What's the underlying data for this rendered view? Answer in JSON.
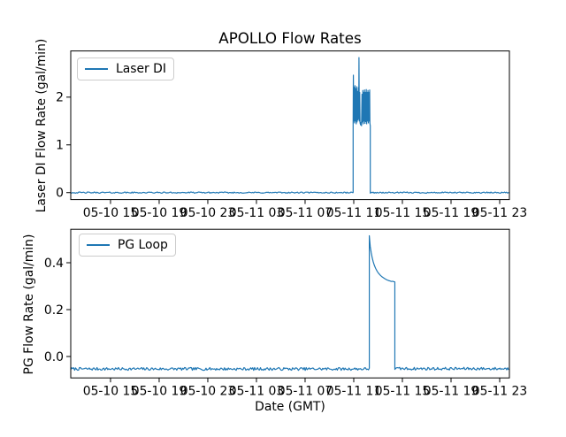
{
  "figure": {
    "background_color": "#ffffff",
    "spine_color": "#000000",
    "legend_border_color": "#cccccc",
    "accent_color": "#1f77b4"
  },
  "chart_data": [
    {
      "type": "line",
      "title": "APOLLO Flow Rates",
      "xlabel": "",
      "ylabel": "Laser DI Flow Rate (gal/min)",
      "legend": {
        "label": "Laser DI",
        "position": "upper left"
      },
      "grid": false,
      "x_unit": "hours since 05-10 00:00 GMT",
      "xlim": [
        11.73,
        47.8
      ],
      "ylim": [
        -0.146,
        2.968
      ],
      "xticks": [
        15,
        19,
        23,
        27,
        31,
        35,
        39,
        43,
        47
      ],
      "xtick_labels": [
        "05-10 15",
        "05-10 19",
        "05-10 23",
        "05-11 03",
        "05-11 07",
        "05-11 11",
        "05-11 15",
        "05-11 19",
        "05-11 23"
      ],
      "yticks": [
        0,
        1,
        2
      ],
      "ytick_labels": [
        "0",
        "1",
        "2"
      ],
      "series": [
        {
          "name": "Laser DI",
          "color": "#1f77b4",
          "segments": [
            {
              "type": "noisy-flat",
              "t0": 11.73,
              "t1": 34.95,
              "v": 0.0,
              "noise": 0.013
            },
            {
              "type": "path",
              "points": [
                [
                  34.95,
                  0
                ],
                [
                  34.95,
                  1.44
                ],
                [
                  34.97,
                  2.46
                ],
                [
                  35.0,
                  1.5
                ],
                [
                  35.03,
                  2.2
                ],
                [
                  35.065,
                  1.46
                ],
                [
                  35.1,
                  2.24
                ],
                [
                  35.135,
                  1.5
                ],
                [
                  35.17,
                  2.18
                ],
                [
                  35.205,
                  1.44
                ],
                [
                  35.24,
                  2.22
                ],
                [
                  35.275,
                  1.48
                ],
                [
                  35.31,
                  2.12
                ],
                [
                  35.345,
                  1.52
                ],
                [
                  35.38,
                  2.2
                ],
                [
                  35.41,
                  1.55
                ],
                [
                  35.43,
                  2.83
                ],
                [
                  35.46,
                  1.5
                ],
                [
                  35.49,
                  2.1
                ],
                [
                  35.52,
                  1.46
                ],
                [
                  35.56,
                  1.42
                ],
                [
                  35.6,
                  1.47
                ],
                [
                  35.64,
                  1.4
                ],
                [
                  35.68,
                  2.06
                ],
                [
                  35.715,
                  1.48
                ],
                [
                  35.75,
                  2.14
                ],
                [
                  35.785,
                  1.44
                ],
                [
                  35.82,
                  2.1
                ],
                [
                  35.855,
                  1.5
                ],
                [
                  35.89,
                  2.15
                ],
                [
                  35.925,
                  1.45
                ],
                [
                  35.96,
                  2.1
                ],
                [
                  35.995,
                  1.49
                ],
                [
                  36.03,
                  2.16
                ],
                [
                  36.065,
                  1.44
                ],
                [
                  36.1,
                  2.1
                ],
                [
                  36.135,
                  1.5
                ],
                [
                  36.17,
                  2.14
                ],
                [
                  36.205,
                  1.46
                ],
                [
                  36.24,
                  2.1
                ],
                [
                  36.275,
                  1.5
                ],
                [
                  36.31,
                  2.15
                ],
                [
                  36.33,
                  1.45
                ],
                [
                  36.36,
                  1.4
                ],
                [
                  36.36,
                  0
                ]
              ]
            },
            {
              "type": "noisy-flat",
              "t0": 36.36,
              "t1": 47.8,
              "v": 0.0,
              "noise": 0.013
            }
          ]
        }
      ]
    },
    {
      "type": "line",
      "title": "",
      "xlabel": "Date (GMT)",
      "ylabel": "PG Flow Rate (gal/min)",
      "legend": {
        "label": "PG Loop",
        "position": "upper left"
      },
      "grid": false,
      "x_unit": "hours since 05-10 00:00 GMT",
      "xlim": [
        11.73,
        47.8
      ],
      "ylim": [
        -0.0913,
        0.5426
      ],
      "xticks": [
        15,
        19,
        23,
        27,
        31,
        35,
        39,
        43,
        47
      ],
      "xtick_labels": [
        "05-10 15",
        "05-10 19",
        "05-10 23",
        "05-11 03",
        "05-11 07",
        "05-11 11",
        "05-11 15",
        "05-11 19",
        "05-11 23"
      ],
      "yticks": [
        0,
        0.2,
        0.4
      ],
      "ytick_labels": [
        "0.0",
        "0.2",
        "0.4"
      ],
      "series": [
        {
          "name": "PG Loop",
          "color": "#1f77b4",
          "segments": [
            {
              "type": "noisy-flat",
              "t0": 11.73,
              "t1": 36.28,
              "v": -0.053,
              "noise": 0.006
            },
            {
              "type": "path",
              "points": [
                [
                  36.28,
                  -0.05
                ],
                [
                  36.28,
                  0.515
                ],
                [
                  36.36,
                  0.468
                ],
                [
                  36.44,
                  0.442
                ],
                [
                  36.52,
                  0.421
                ],
                [
                  36.6,
                  0.404
                ],
                [
                  36.7,
                  0.388
                ],
                [
                  36.8,
                  0.376
                ],
                [
                  36.92,
                  0.364
                ],
                [
                  37.04,
                  0.355
                ],
                [
                  37.16,
                  0.348
                ],
                [
                  37.3,
                  0.341
                ],
                [
                  37.44,
                  0.336
                ],
                [
                  37.58,
                  0.331
                ],
                [
                  37.72,
                  0.327
                ],
                [
                  37.86,
                  0.324
                ],
                [
                  38.0,
                  0.322
                ],
                [
                  38.1,
                  0.32
                ],
                [
                  38.2,
                  0.321
                ],
                [
                  38.3,
                  0.319
                ],
                [
                  38.38,
                  0.318
                ],
                [
                  38.38,
                  -0.048
                ]
              ]
            },
            {
              "type": "noisy-flat",
              "t0": 38.38,
              "t1": 47.8,
              "v": -0.052,
              "noise": 0.006
            }
          ]
        }
      ]
    }
  ]
}
